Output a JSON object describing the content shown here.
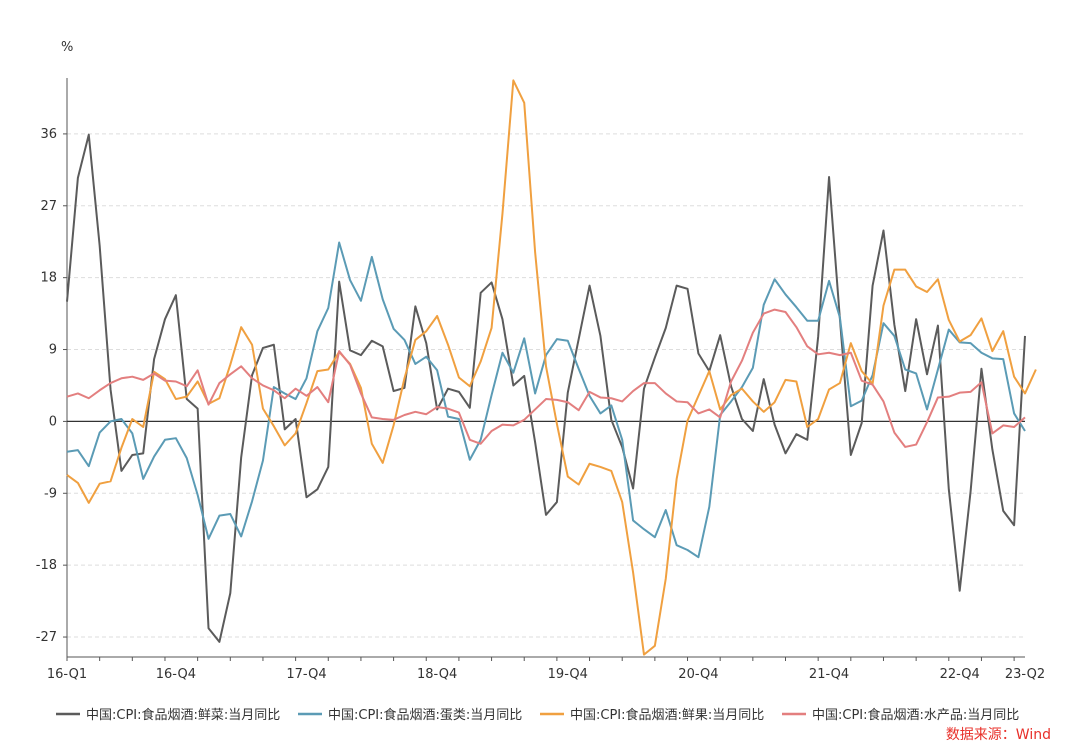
{
  "chart_data": {
    "type": "line",
    "unit": "%",
    "source": "数据来源：Wind",
    "colors": {
      "veg": "#5b5b5b",
      "egg": "#5b9bb5",
      "fruit": "#f0a040",
      "aquatic": "#e37f7f",
      "source": "#e8302a",
      "zero_line": "#333333",
      "grid": "#dddddd"
    },
    "ylim": [
      -29.5,
      43
    ],
    "yticks": [
      -27,
      -18,
      -9,
      0,
      9,
      18,
      27,
      36
    ],
    "xticks": [
      {
        "label": "16-Q1",
        "index": 0
      },
      {
        "label": "16-Q4",
        "index": 10
      },
      {
        "label": "17-Q4",
        "index": 22
      },
      {
        "label": "18-Q4",
        "index": 34
      },
      {
        "label": "19-Q4",
        "index": 46
      },
      {
        "label": "20-Q4",
        "index": 58
      },
      {
        "label": "21-Q4",
        "index": 70
      },
      {
        "label": "22-Q4",
        "index": 82
      },
      {
        "label": "23-Q2",
        "index": 88
      }
    ],
    "x_count": 89,
    "series": [
      {
        "key": "veg",
        "name": "中国:CPI:食品烟酒:鲜菜:当月同比",
        "values": [
          15,
          30.5,
          35.9,
          22,
          4,
          -6.2,
          -4.2,
          -4,
          7.8,
          12.8,
          15.8,
          2.8,
          1.6,
          -25.9,
          -27.6,
          -21.5,
          -4.5,
          5.8,
          9.2,
          9.6,
          -1,
          0.3,
          -9.5,
          -8.5,
          -5.7,
          17.5,
          8.9,
          8.3,
          10.1,
          9.4,
          3.8,
          4.2,
          14.4,
          9.8,
          1.5,
          4.1,
          3.7,
          1.7,
          16.1,
          17.4,
          12.8,
          4.5,
          5.7,
          -2.6,
          -11.7,
          -10.1,
          3.6,
          10.3,
          17,
          10.7,
          0.2,
          -3.2,
          -8.4,
          4.1,
          8,
          11.7,
          17,
          16.6,
          8.5,
          6.3,
          10.8,
          4.4,
          0.3,
          -1.2,
          5.3,
          -0.4,
          -4,
          -1.6,
          -2.3,
          10.6,
          30.6,
          12.8,
          -4.2,
          -0.2,
          17,
          23.9,
          12.1,
          3.8,
          12.8,
          5.9,
          12,
          -8.5,
          -21.2,
          -8.8,
          6.6,
          -3.5,
          -11.2,
          -13,
          10.7
        ]
      },
      {
        "key": "egg",
        "name": "中国:CPI:食品烟酒:蛋类:当月同比",
        "values": [
          -3.8,
          -3.6,
          -5.6,
          -1.4,
          0,
          0.3,
          -1.5,
          -7.2,
          -4.4,
          -2.3,
          -2.1,
          -4.6,
          -9.2,
          -14.7,
          -11.8,
          -11.6,
          -14.4,
          -10,
          -4.9,
          4.3,
          3.5,
          2.8,
          5.4,
          11.3,
          14.2,
          22.4,
          17.7,
          15.1,
          20.6,
          15.3,
          11.6,
          10.2,
          7.2,
          8.1,
          6.4,
          0.6,
          0.3,
          -4.8,
          -2.3,
          3.3,
          8.6,
          6.1,
          10.4,
          3.5,
          8.3,
          10.3,
          10.1,
          6.6,
          3.2,
          1,
          2,
          -2.3,
          -12.4,
          -13.5,
          -14.5,
          -11.1,
          -15.5,
          -16.1,
          -17,
          -10.7,
          0.8,
          2.5,
          4.3,
          6.7,
          14.6,
          17.8,
          15.9,
          14.3,
          12.6,
          12.6,
          17.6,
          13,
          1.9,
          2.6,
          5.8,
          12.3,
          10.7,
          6.5,
          6,
          1.5,
          6.5,
          11.5,
          9.9,
          9.8,
          8.6,
          7.9,
          7.8,
          1,
          -1.2
        ]
      },
      {
        "key": "fruit",
        "name": "中国:CPI:食品烟酒:鲜果:当月同比",
        "values": [
          -6.7,
          -7.7,
          -10.2,
          -7.8,
          -7.5,
          -3.3,
          0.3,
          -0.7,
          6.2,
          5.3,
          2.8,
          3.1,
          5,
          2.2,
          2.9,
          7.1,
          11.8,
          9.6,
          1.6,
          -0.6,
          -3,
          -1.5,
          2.3,
          6.3,
          6.5,
          8.7,
          7.2,
          4.2,
          -2.8,
          -5.2,
          -0.5,
          5.4,
          10.2,
          11.3,
          13.2,
          9.6,
          5.5,
          4.4,
          7.5,
          11.7,
          26,
          42.7,
          39.9,
          21.2,
          6.9,
          -0.3,
          -6.9,
          -7.9,
          -5.3,
          -5.7,
          -6.2,
          -10.1,
          -18.9,
          -29.2,
          -28.1,
          -19.7,
          -7.2,
          0.1,
          3.2,
          6.3,
          1.5,
          3.3,
          4.1,
          2.5,
          1.2,
          2.4,
          5.2,
          5,
          -0.7,
          0.3,
          4,
          4.8,
          9.8,
          6.3,
          4.7,
          14.5,
          19,
          19,
          16.9,
          16.2,
          17.8,
          12.7,
          10,
          10.8,
          12.9,
          8.8,
          11.3,
          5.6,
          3.5,
          6.5
        ]
      },
      {
        "key": "aquatic",
        "name": "中国:CPI:食品烟酒:水产品:当月同比",
        "values": [
          3.1,
          3.5,
          2.9,
          3.9,
          4.8,
          5.4,
          5.6,
          5.2,
          6,
          5.1,
          5,
          4.4,
          6.4,
          2.1,
          4.8,
          5.9,
          6.9,
          5.4,
          4.5,
          3.9,
          2.9,
          4.1,
          3.2,
          4.3,
          2.4,
          8.8,
          7.1,
          3.5,
          0.5,
          0.3,
          0.2,
          0.8,
          1.2,
          0.9,
          1.8,
          1.6,
          1.1,
          -2.3,
          -2.8,
          -1.2,
          -0.4,
          -0.5,
          0.2,
          1.5,
          2.8,
          2.7,
          2.4,
          1.4,
          3.7,
          3,
          2.9,
          2.5,
          3.8,
          4.8,
          4.8,
          3.5,
          2.5,
          2.4,
          1,
          1.5,
          0.5,
          5,
          7.6,
          11.1,
          13.5,
          14,
          13.7,
          11.8,
          9.4,
          8.4,
          8.6,
          8.3,
          8.6,
          5.1,
          4.6,
          2.5,
          -1.4,
          -3.2,
          -2.9,
          -0.1,
          3,
          3.1,
          3.6,
          3.7,
          4.9,
          -1.5,
          -0.5,
          -0.7,
          0.5
        ]
      }
    ],
    "legend": {
      "position": "bottom",
      "items": [
        "中国:CPI:食品烟酒:鲜菜:当月同比",
        "中国:CPI:食品烟酒:蛋类:当月同比",
        "中国:CPI:食品烟酒:鲜果:当月同比",
        "中国:CPI:食品烟酒:水产品:当月同比"
      ]
    }
  }
}
